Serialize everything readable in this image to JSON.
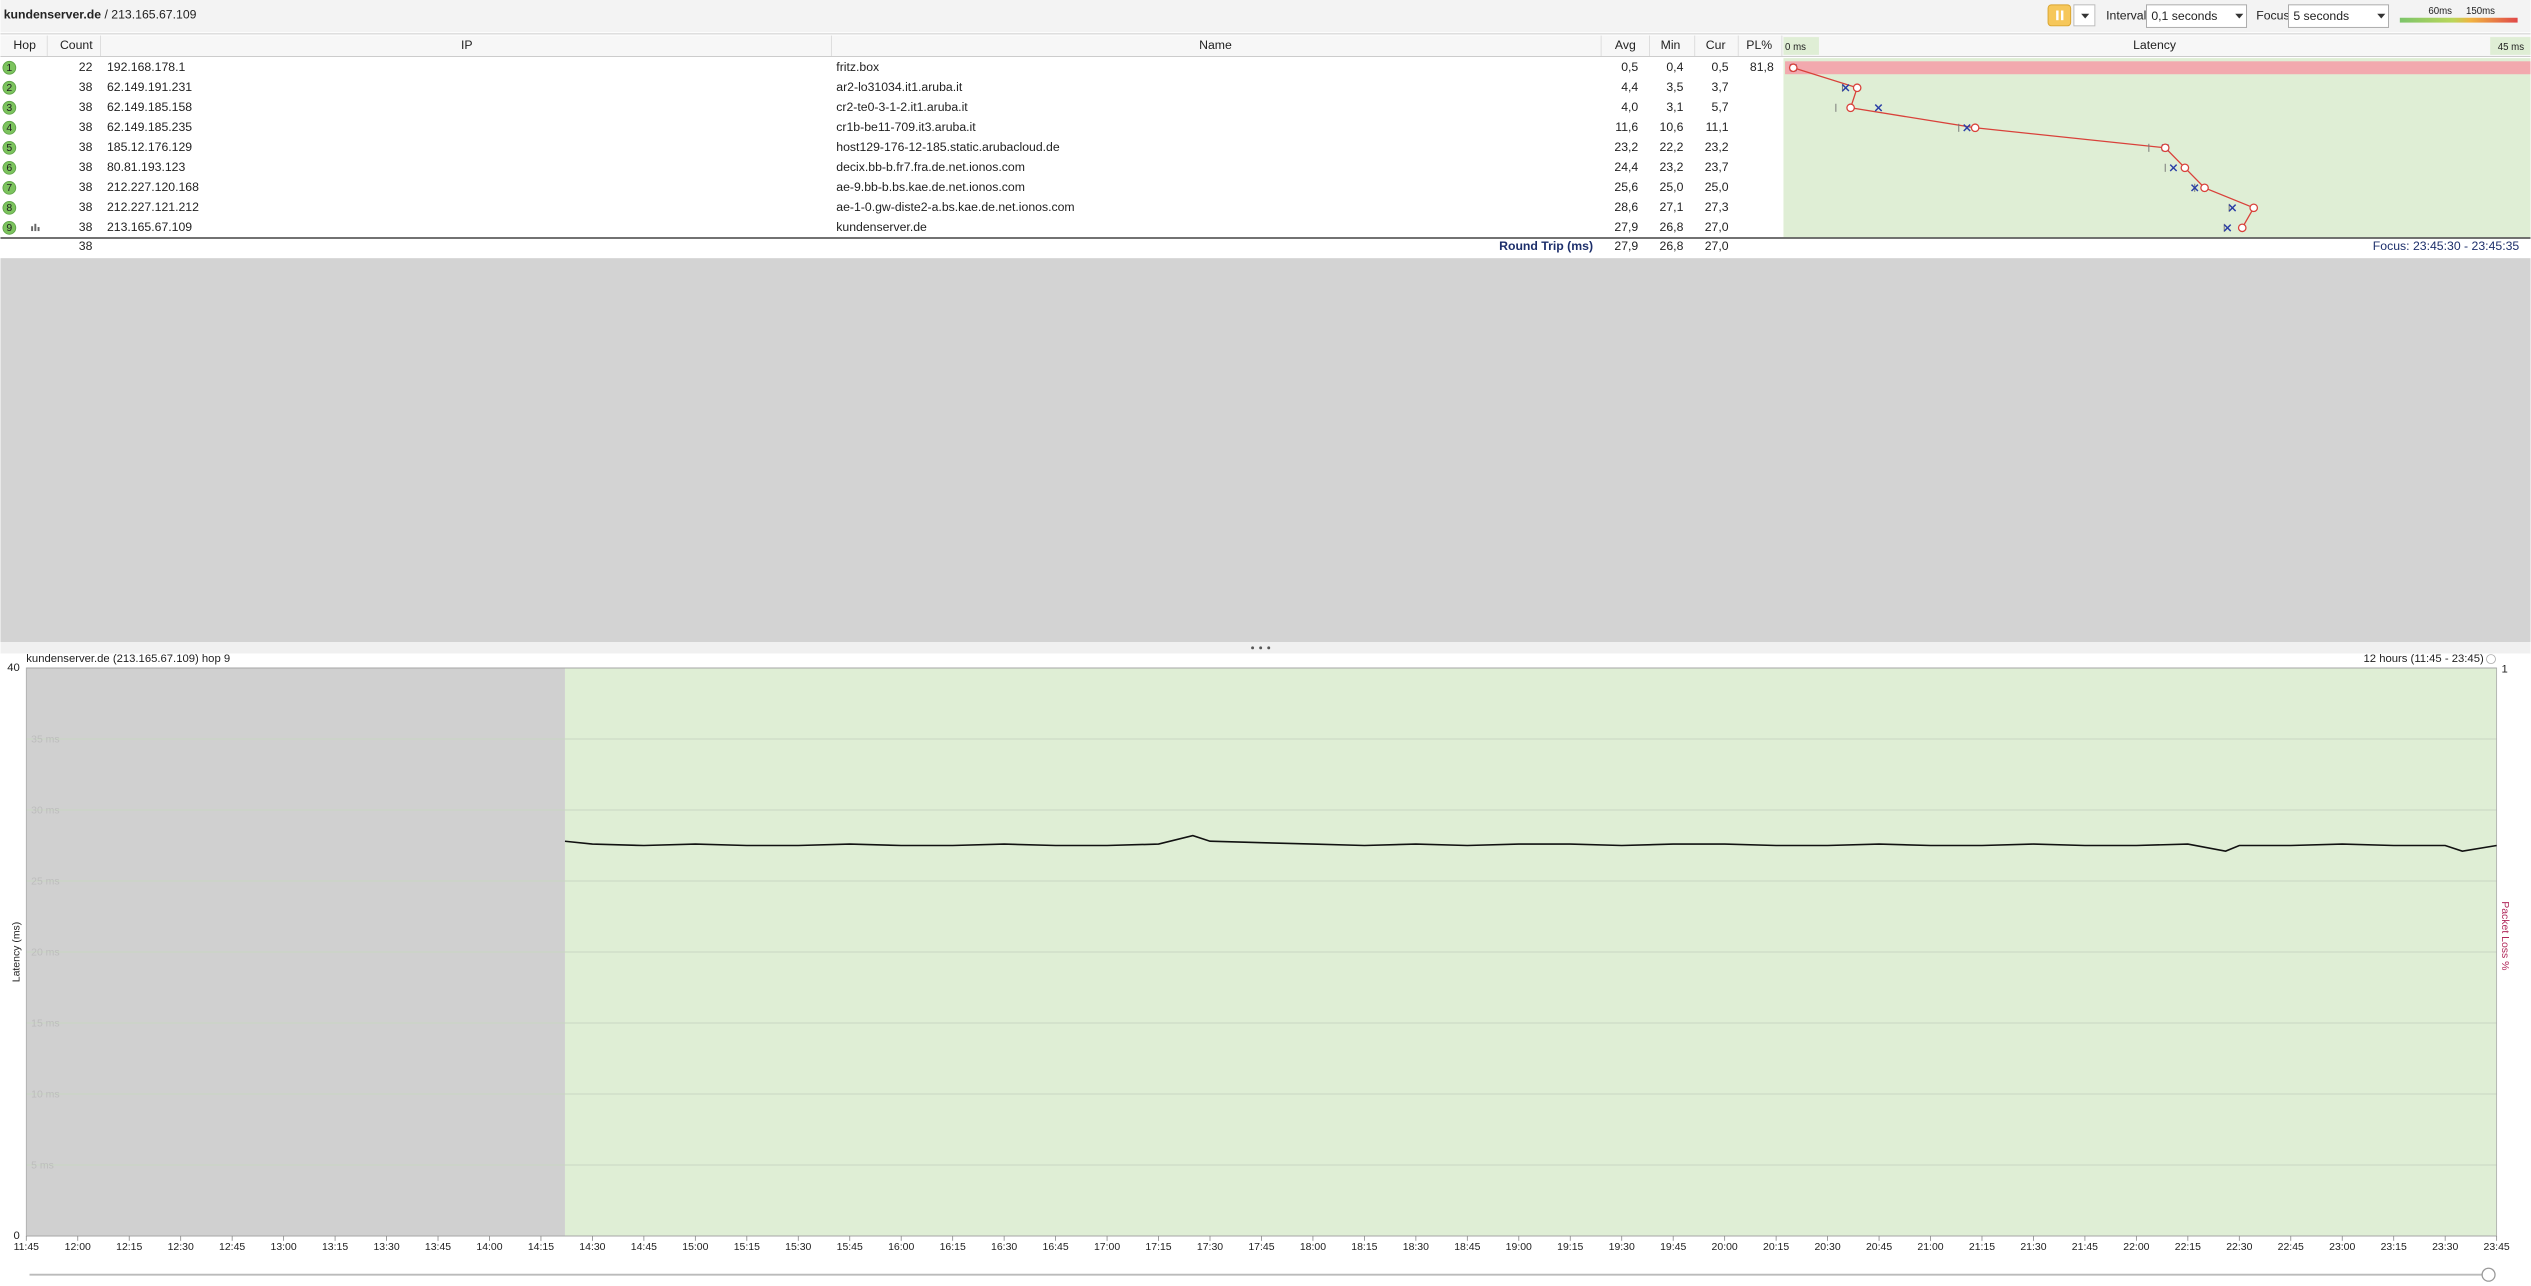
{
  "header": {
    "host": "kundenserver.de",
    "separator": "/",
    "target": "213.165.67.109"
  },
  "toolbar": {
    "interval_label": "Interval",
    "interval": "0,1 seconds",
    "focus_label": "Focus",
    "focus": "5 seconds",
    "scale_low": "60ms",
    "scale_high": "150ms"
  },
  "table": {
    "columns": [
      "Hop",
      "Count",
      "IP",
      "Name",
      "Avg",
      "Min",
      "Cur",
      "PL%",
      "Latency"
    ],
    "latency_min": "0 ms",
    "latency_max": "45 ms",
    "rows": [
      {
        "hop": "1",
        "count": "22",
        "ip": "192.168.178.1",
        "name": "fritz.box",
        "avg": "0,5",
        "min": "0,4",
        "cur": "0,5",
        "pl": "81,8"
      },
      {
        "hop": "2",
        "count": "38",
        "ip": "62.149.191.231",
        "name": "ar2-lo31034.it1.aruba.it",
        "avg": "4,4",
        "min": "3,5",
        "cur": "3,7"
      },
      {
        "hop": "3",
        "count": "38",
        "ip": "62.149.185.158",
        "name": "cr2-te0-3-1-2.it1.aruba.it",
        "avg": "4,0",
        "min": "3,1",
        "cur": "5,7"
      },
      {
        "hop": "4",
        "count": "38",
        "ip": "62.149.185.235",
        "name": "cr1b-be11-709.it3.aruba.it",
        "avg": "11,6",
        "min": "10,6",
        "cur": "11,1"
      },
      {
        "hop": "5",
        "count": "38",
        "ip": "185.12.176.129",
        "name": "host129-176-12-185.static.arubacloud.de",
        "avg": "23,2",
        "min": "22,2",
        "cur": "23,2"
      },
      {
        "hop": "6",
        "count": "38",
        "ip": "80.81.193.123",
        "name": "decix.bb-b.fr7.fra.de.net.ionos.com",
        "avg": "24,4",
        "min": "23,2",
        "cur": "23,7"
      },
      {
        "hop": "7",
        "count": "38",
        "ip": "212.227.120.168",
        "name": "ae-9.bb-b.bs.kae.de.net.ionos.com",
        "avg": "25,6",
        "min": "25,0",
        "cur": "25,0"
      },
      {
        "hop": "8",
        "count": "38",
        "ip": "212.227.121.212",
        "name": "ae-1-0.gw-diste2-a.bs.kae.de.net.ionos.com",
        "avg": "28,6",
        "min": "27,1",
        "cur": "27,3"
      },
      {
        "hop": "9",
        "count": "38",
        "ip": "213.165.67.109",
        "name": "kundenserver.de",
        "avg": "27,9",
        "min": "26,8",
        "cur": "27,0"
      }
    ]
  },
  "summary": {
    "count": "38",
    "label": "Round Trip (ms)",
    "avg": "27,9",
    "min": "26,8",
    "cur": "27,0",
    "focus": "Focus: 23:45:30 - 23:45:35"
  },
  "chart_data": {
    "type": "line",
    "title": "kundenserver.de (213.165.67.109) hop 9",
    "range": "12 hours (11:45 - 23:45)",
    "ylabel": "Latency (ms)",
    "y2label": "Packet Loss %",
    "ylim": [
      0,
      40
    ],
    "yticks": [
      0,
      {
        "value": 5,
        "label": "5 ms"
      },
      {
        "value": 10,
        "label": "10 ms"
      },
      {
        "value": 15,
        "label": "15 ms"
      },
      {
        "value": 20,
        "label": "20 ms"
      },
      {
        "value": 25,
        "label": "25 ms"
      },
      {
        "value": 30,
        "label": "30 ms"
      },
      {
        "value": 35,
        "label": "35 ms"
      },
      40
    ],
    "y2lim": [
      0,
      1
    ],
    "y2ticks": [
      1
    ],
    "xlim": [
      "11:45",
      "23:45"
    ],
    "xticks": [
      "11:45",
      "12:00",
      "12:15",
      "12:30",
      "12:45",
      "13:00",
      "13:15",
      "13:30",
      "13:45",
      "14:00",
      "14:15",
      "14:30",
      "14:45",
      "15:00",
      "15:15",
      "15:30",
      "15:45",
      "16:00",
      "16:15",
      "16:30",
      "16:45",
      "17:00",
      "17:15",
      "17:30",
      "17:45",
      "18:00",
      "18:15",
      "18:30",
      "18:45",
      "19:00",
      "19:15",
      "19:30",
      "19:45",
      "20:00",
      "20:15",
      "20:30",
      "20:45",
      "21:00",
      "21:15",
      "21:30",
      "21:45",
      "22:00",
      "22:15",
      "22:30",
      "22:45",
      "23:00",
      "23:15",
      "23:30",
      "23:45"
    ],
    "color": "#111111",
    "grid": true,
    "x": [
      "14:22",
      "14:30",
      "14:45",
      "15:00",
      "15:15",
      "15:30",
      "15:45",
      "16:00",
      "16:15",
      "16:30",
      "16:45",
      "17:00",
      "17:15",
      "17:25",
      "17:30",
      "17:45",
      "18:00",
      "18:15",
      "18:30",
      "18:45",
      "19:00",
      "19:15",
      "19:30",
      "19:45",
      "20:00",
      "20:15",
      "20:30",
      "20:45",
      "21:00",
      "21:15",
      "21:30",
      "21:45",
      "22:00",
      "22:15",
      "22:26",
      "22:30",
      "22:45",
      "23:00",
      "23:15",
      "23:30",
      "23:35",
      "23:45"
    ],
    "values": [
      27.8,
      27.6,
      27.5,
      27.6,
      27.5,
      27.5,
      27.6,
      27.5,
      27.5,
      27.6,
      27.5,
      27.5,
      27.6,
      28.2,
      27.8,
      27.7,
      27.6,
      27.5,
      27.6,
      27.5,
      27.6,
      27.6,
      27.5,
      27.6,
      27.6,
      27.5,
      27.5,
      27.6,
      27.5,
      27.5,
      27.6,
      27.5,
      27.5,
      27.6,
      27.1,
      27.5,
      27.5,
      27.6,
      27.5,
      27.5,
      27.1,
      27.5
    ]
  }
}
